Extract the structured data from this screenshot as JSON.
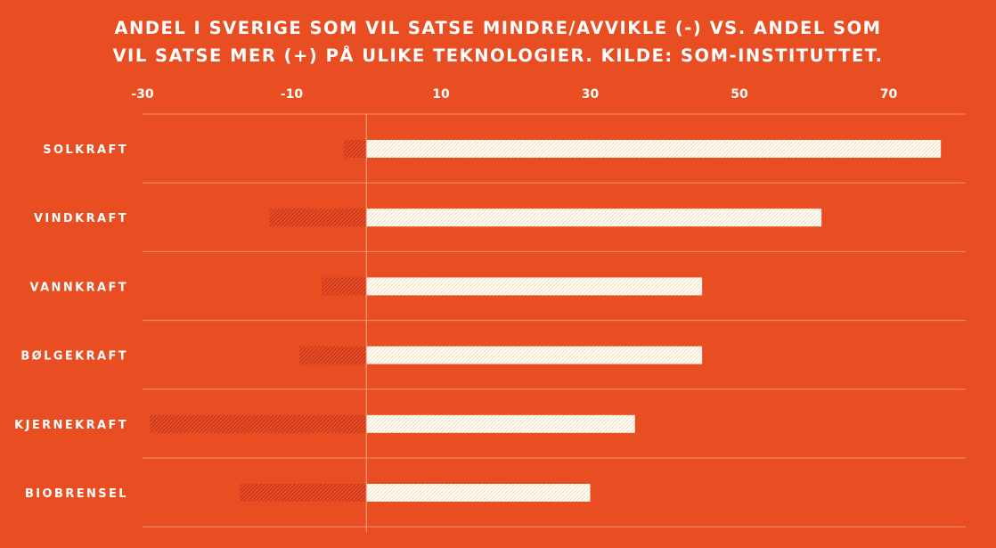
{
  "chart_data": {
    "type": "bar",
    "orientation": "horizontal",
    "title_lines": [
      "ANDEL I SVERIGE SOM VIL SATSE MINDRE/AVVIKLE (-) VS. ANDEL SOM",
      "VIL SATSE MER (+) PÅ ULIKE TEKNOLOGIER. KILDE: SOM-INSTITUTTET."
    ],
    "x_ticks": [
      -30,
      -10,
      10,
      30,
      50,
      70
    ],
    "xlim": [
      -30,
      80
    ],
    "categories": [
      "SOLKRAFT",
      "VINDKRAFT",
      "VANNKRAFT",
      "BØLGEKRAFT",
      "KJERNEKRAFT",
      "BIOBRENSEL"
    ],
    "series": [
      {
        "values": [
          -3,
          -13,
          -6,
          -9,
          -29,
          -17
        ]
      },
      {
        "values": [
          77,
          61,
          45,
          45,
          36,
          30
        ]
      }
    ],
    "grid": true,
    "legend": "none",
    "colors": {
      "background": "#e84e22",
      "negative_hatch": "#b42a22",
      "positive_hatch": "#fce0b0",
      "grid": "#f58e6e",
      "text": "#ffffff"
    }
  }
}
